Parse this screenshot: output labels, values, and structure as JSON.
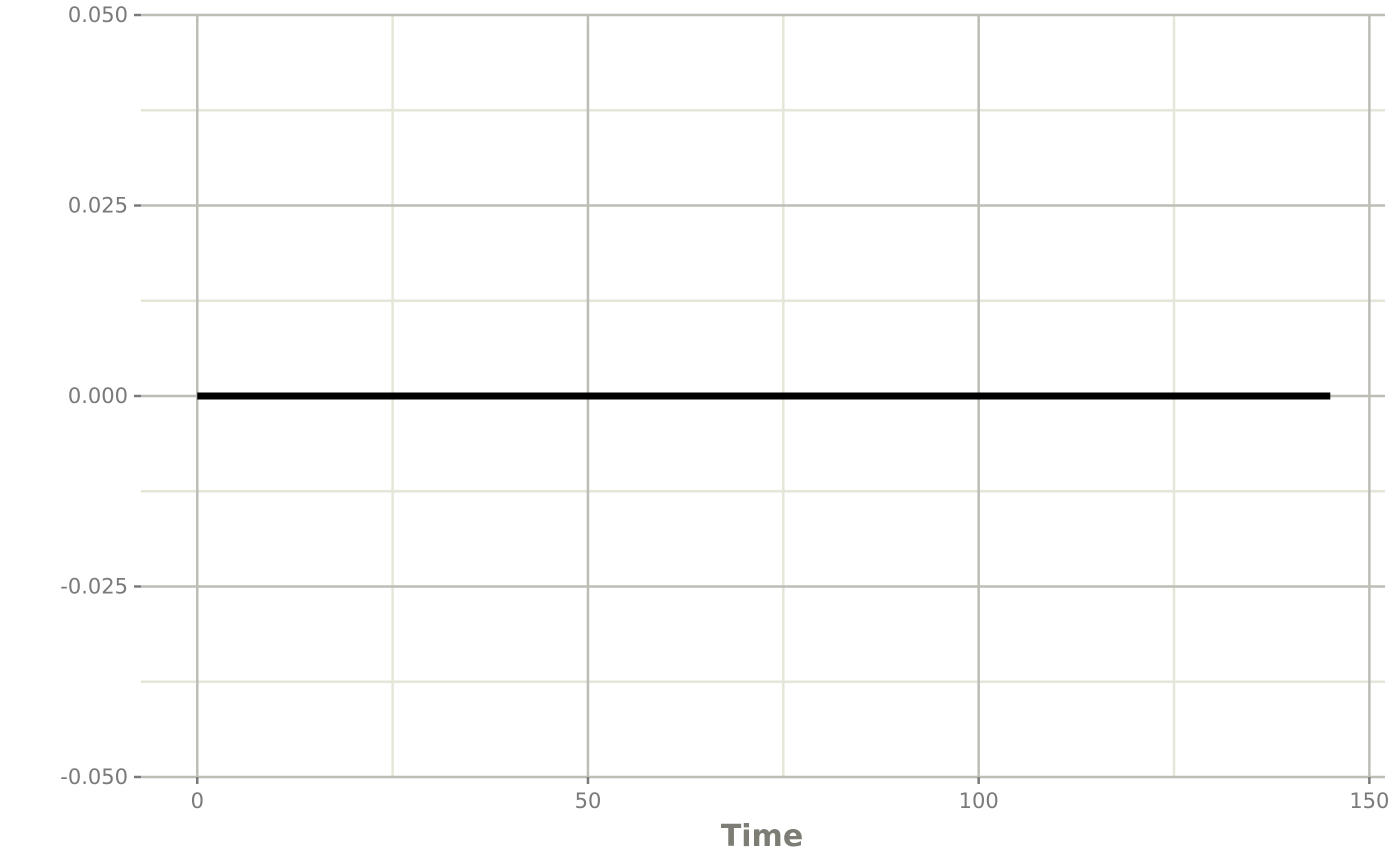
{
  "chart_data": {
    "type": "line",
    "xlabel": "Time",
    "ylabel": "",
    "xlim": [
      -7.2,
      152.0
    ],
    "ylim": [
      -0.05,
      0.05
    ],
    "x_ticks": [
      0,
      50,
      100,
      150
    ],
    "x_tick_labels": [
      "0",
      "50",
      "100",
      "150"
    ],
    "x_minor_ticks": [
      25,
      75,
      125
    ],
    "y_ticks": [
      -0.05,
      -0.025,
      0,
      0.025,
      0.05
    ],
    "y_tick_labels": [
      "-0.050",
      "-0.025",
      "0.000",
      "0.025",
      "0.050"
    ],
    "y_minor_ticks": [
      -0.0375,
      -0.0125,
      0.0125,
      0.0375
    ],
    "grid": true,
    "series": [
      {
        "x": [
          0,
          145
        ],
        "y": [
          0,
          0
        ],
        "color": "#000000"
      }
    ]
  }
}
